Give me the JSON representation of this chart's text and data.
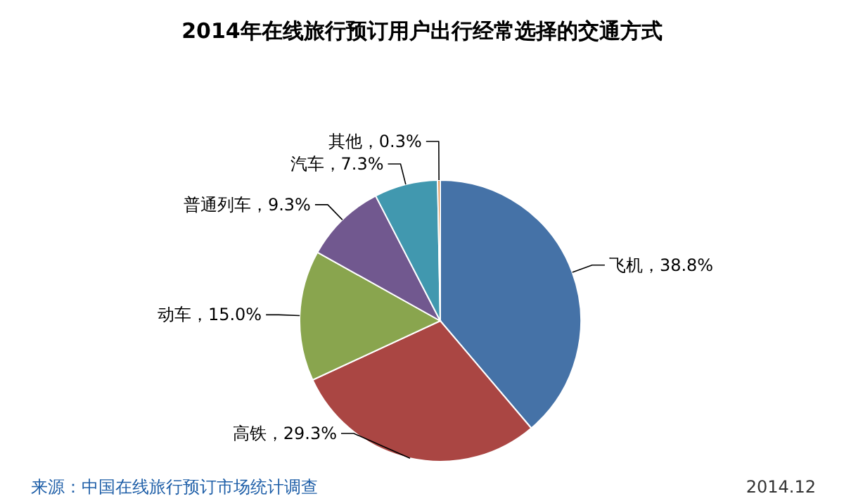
{
  "chart_data": {
    "type": "pie",
    "title": "2014年在线旅行预订用户出行经常选择的交通方式",
    "categories": [
      "飞机",
      "高铁",
      "动车",
      "普通列车",
      "汽车",
      "其他"
    ],
    "values": [
      38.8,
      29.3,
      15.0,
      9.3,
      7.3,
      0.3
    ],
    "value_labels": [
      "38.8%",
      "29.3%",
      "15.0%",
      "9.3%",
      "7.3%",
      "0.3%"
    ],
    "colors": [
      "#4572a7",
      "#aa4643",
      "#89a54e",
      "#71588f",
      "#4198af",
      "#db843d"
    ],
    "annotations": [
      "来源：中国在线旅行预订市场统计调查",
      "2014.12"
    ]
  }
}
